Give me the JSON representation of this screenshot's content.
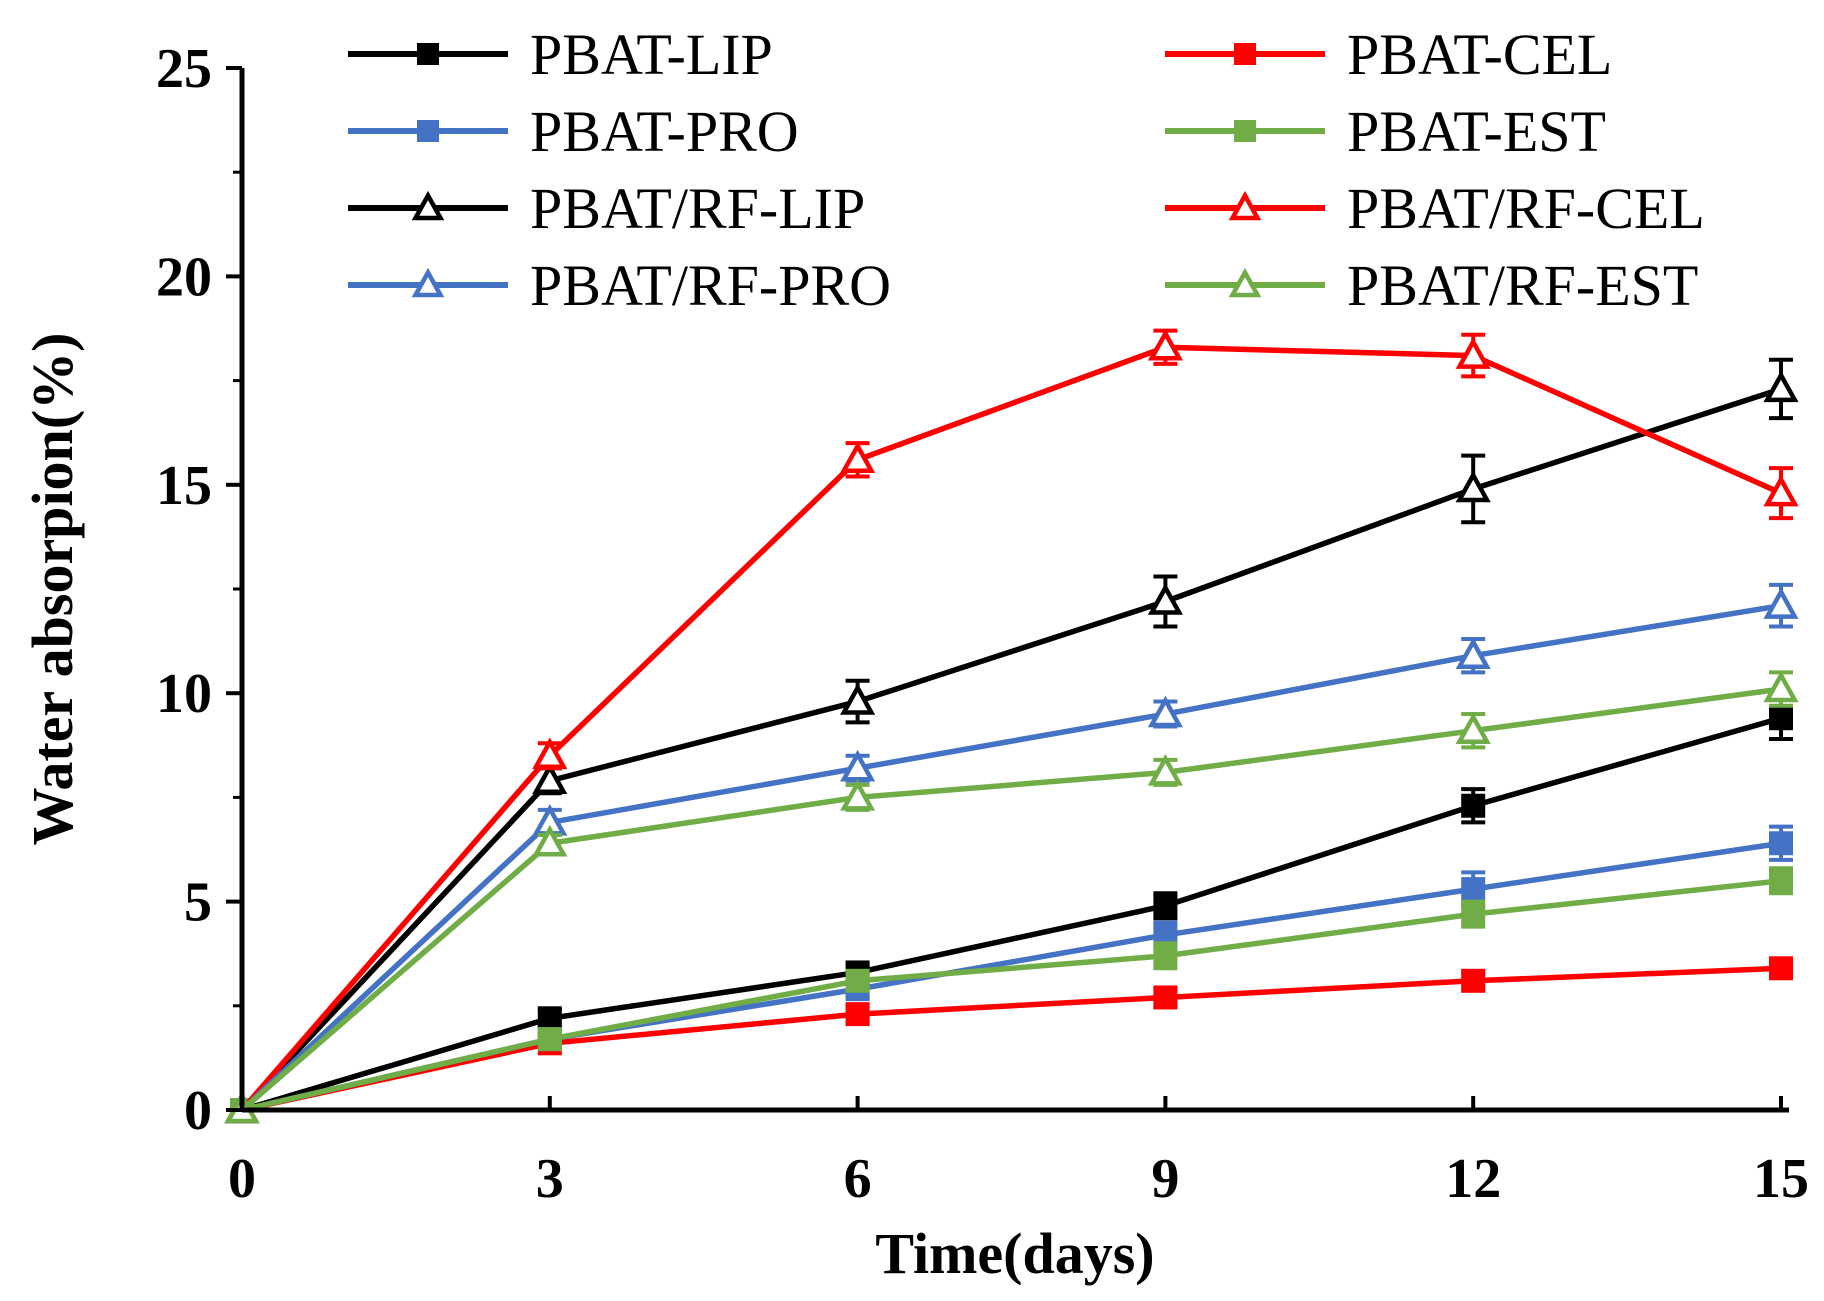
{
  "chart_data": {
    "type": "line",
    "title": "",
    "xlabel": "Time(days)",
    "ylabel": "Water absorpion(%)",
    "xlim": [
      0,
      15
    ],
    "ylim": [
      0,
      25
    ],
    "xticks": [
      0,
      3,
      6,
      9,
      12,
      15
    ],
    "yticks": [
      0,
      5,
      10,
      15,
      20,
      25
    ],
    "x": [
      0,
      3,
      6,
      9,
      12,
      15
    ],
    "grid": false,
    "legend_position": "top",
    "series": [
      {
        "name": "PBAT-LIP",
        "color": "#000000",
        "marker": "square",
        "values": [
          0,
          2.2,
          3.3,
          4.9,
          7.3,
          9.4
        ],
        "errors": [
          0,
          0.2,
          0.2,
          0.3,
          0.4,
          0.5
        ]
      },
      {
        "name": "PBAT-CEL",
        "color": "#ff0000",
        "marker": "square",
        "values": [
          0,
          1.6,
          2.3,
          2.7,
          3.1,
          3.4
        ],
        "errors": [
          0,
          0.1,
          0.2,
          0.2,
          0.2,
          0.2
        ]
      },
      {
        "name": "PBAT-PRO",
        "color": "#4472c4",
        "marker": "square",
        "values": [
          0,
          1.7,
          2.9,
          4.2,
          5.3,
          6.4
        ],
        "errors": [
          0,
          0.1,
          0.2,
          0.3,
          0.4,
          0.4
        ]
      },
      {
        "name": "PBAT-EST",
        "color": "#70ad47",
        "marker": "square",
        "values": [
          0,
          1.7,
          3.1,
          3.7,
          4.7,
          5.5
        ],
        "errors": [
          0,
          0.1,
          0.2,
          0.3,
          0.3,
          0.3
        ]
      },
      {
        "name": "PBAT/RF-LIP",
        "color": "#000000",
        "marker": "triangle",
        "values": [
          0,
          7.9,
          9.8,
          12.2,
          14.9,
          17.3
        ],
        "errors": [
          0,
          0.3,
          0.5,
          0.6,
          0.8,
          0.7
        ]
      },
      {
        "name": "PBAT/RF-CEL",
        "color": "#ff0000",
        "marker": "triangle",
        "values": [
          0,
          8.5,
          15.6,
          18.3,
          18.1,
          14.8
        ],
        "errors": [
          0,
          0.3,
          0.4,
          0.4,
          0.5,
          0.6
        ]
      },
      {
        "name": "PBAT/RF-PRO",
        "color": "#4472c4",
        "marker": "triangle",
        "values": [
          0,
          6.9,
          8.2,
          9.5,
          10.9,
          12.1
        ],
        "errors": [
          0,
          0.3,
          0.3,
          0.3,
          0.4,
          0.5
        ]
      },
      {
        "name": "PBAT/RF-EST",
        "color": "#70ad47",
        "marker": "triangle",
        "values": [
          0,
          6.4,
          7.5,
          8.1,
          9.1,
          10.1
        ],
        "errors": [
          0,
          0.2,
          0.3,
          0.3,
          0.4,
          0.4
        ]
      }
    ]
  }
}
